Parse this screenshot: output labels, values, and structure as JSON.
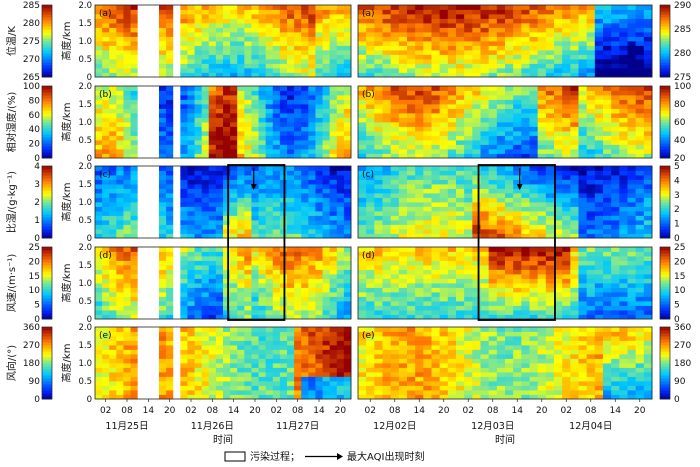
{
  "chart_data": {
    "type": "heatmap",
    "time_label": "时间",
    "height_axis_label": "高度/km",
    "height_range": [
      0,
      2
    ],
    "height_ticks": [
      "0",
      "0.5",
      "1.0",
      "1.5",
      "2.0"
    ],
    "time_tick_labels": [
      "02",
      "08",
      "14",
      "20"
    ],
    "left_period": {
      "dates": [
        "11月25日",
        "11月26日",
        "11月27日"
      ],
      "tick_hours": [
        "02",
        "08",
        "14",
        "20",
        "02",
        "08",
        "14",
        "20",
        "02",
        "08",
        "14",
        "20"
      ]
    },
    "right_period": {
      "dates": [
        "12月02日",
        "12月03日",
        "12月04日"
      ],
      "tick_hours": [
        "02",
        "08",
        "14",
        "20",
        "02",
        "08",
        "14",
        "20",
        "02",
        "08",
        "14",
        "20"
      ]
    },
    "panels": [
      {
        "id": "a",
        "tag": "(a)",
        "variable": "位温/K",
        "left_scale": {
          "range": [
            265,
            285
          ],
          "ticks": [
            "265",
            "270",
            "275",
            "280",
            "285"
          ]
        },
        "right_scale": {
          "range": [
            275,
            290
          ],
          "ticks": [
            "275",
            "280",
            "285",
            "290"
          ]
        }
      },
      {
        "id": "b",
        "tag": "(b)",
        "variable": "相对湿度/(%)",
        "left_scale": {
          "range": [
            0,
            100
          ],
          "ticks": [
            "0",
            "20",
            "40",
            "60",
            "80",
            "100"
          ]
        },
        "right_scale": {
          "range": [
            20,
            100
          ],
          "ticks": [
            "20",
            "40",
            "60",
            "80",
            "100"
          ]
        }
      },
      {
        "id": "c",
        "tag": "(c)",
        "variable": "比湿/(g·kg⁻¹)",
        "left_scale": {
          "range": [
            0,
            4
          ],
          "ticks": [
            "0",
            "1",
            "2",
            "3",
            "4"
          ]
        },
        "right_scale": {
          "range": [
            0,
            5
          ],
          "ticks": [
            "0",
            "1",
            "2",
            "3",
            "4",
            "5"
          ]
        }
      },
      {
        "id": "d",
        "tag": "(d)",
        "variable": "风速/(m·s⁻¹)",
        "left_scale": {
          "range": [
            0,
            25
          ],
          "ticks": [
            "0",
            "5",
            "10",
            "15",
            "20",
            "25"
          ]
        },
        "right_scale": {
          "range": [
            0,
            25
          ],
          "ticks": [
            "0",
            "5",
            "10",
            "15",
            "20",
            "25"
          ]
        }
      },
      {
        "id": "e",
        "tag": "(e)",
        "variable": "风向/(°)",
        "left_scale": {
          "range": [
            0,
            360
          ],
          "ticks": [
            "0",
            "90",
            "180",
            "270",
            "360"
          ]
        },
        "right_scale": {
          "range": [
            0,
            360
          ],
          "ticks": [
            "0",
            "90",
            "180",
            "270",
            "360"
          ]
        }
      }
    ],
    "pollution_boxes": [
      {
        "period": "left",
        "from": "11月26日 14",
        "to": "11月27日 08"
      },
      {
        "period": "right",
        "from": "12月03日 02",
        "to": "12月03日 20"
      }
    ],
    "max_aqi_arrows": [
      {
        "period": "left",
        "time": "11月26日 20",
        "panel": "c"
      },
      {
        "period": "right",
        "time": "12月03日 14",
        "panel": "c"
      }
    ],
    "legend": {
      "box_label": "污染过程；",
      "arrow_label": "最大AQI出现时刻"
    }
  }
}
